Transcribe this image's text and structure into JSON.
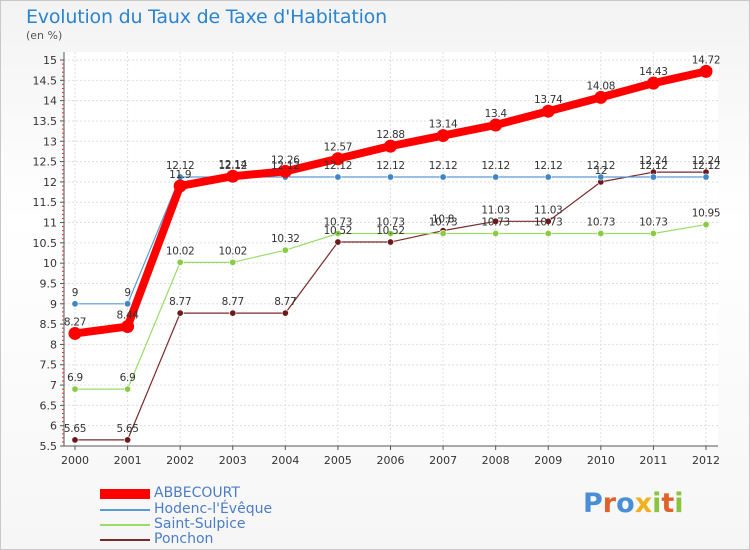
{
  "title": "Evolution du Taux de Taxe d'Habitation",
  "unit_label": "(en %)",
  "brand": "Proxiti",
  "brand_colors": [
    "#4a8fd6",
    "#e0622b",
    "#4a8fd6",
    "#f0b020",
    "#8ac43e",
    "#e0622b",
    "#8ac43e"
  ],
  "chart_data": {
    "type": "line",
    "title": "Evolution du Taux de Taxe d'Habitation",
    "ylabel": "(en %)",
    "xlabel": "",
    "x": [
      "2000",
      "2001",
      "2002",
      "2003",
      "2004",
      "2005",
      "2006",
      "2007",
      "2008",
      "2009",
      "2010",
      "2011",
      "2012"
    ],
    "ylim": [
      5.5,
      15
    ],
    "yticks": [
      "5.5",
      "6",
      "6.5",
      "7",
      "7.5",
      "8",
      "8.5",
      "9",
      "9.5",
      "10",
      "10.5",
      "11",
      "11.5",
      "12",
      "12.5",
      "13",
      "13.5",
      "14",
      "14.5",
      "15"
    ],
    "grid": true,
    "legend_position": "bottom-left",
    "series": [
      {
        "name": "ABBECOURT",
        "color": "#ff0000",
        "values": [
          8.27,
          8.44,
          11.9,
          12.14,
          12.26,
          12.57,
          12.88,
          13.14,
          13.4,
          13.74,
          14.08,
          14.43,
          14.72
        ],
        "labels": [
          "8.27",
          "8.44",
          "11.9",
          "12.14",
          "12.26",
          "12.57",
          "12.88",
          "13.14",
          "13.4",
          "13.74",
          "14.08",
          "14.43",
          "14.72"
        ]
      },
      {
        "name": "Hodenc-l'Évêque",
        "color": "#5b9bd5",
        "values": [
          9,
          9,
          12.12,
          12.12,
          12.12,
          12.12,
          12.12,
          12.12,
          12.12,
          12.12,
          12.12,
          12.12,
          12.12
        ],
        "labels": [
          "9",
          "9",
          "12.12",
          "12.12",
          "12.12",
          "12.12",
          "12.12",
          "12.12",
          "12.12",
          "12.12",
          "12.12",
          "12.12",
          "12.12"
        ]
      },
      {
        "name": "Saint-Sulpice",
        "color": "#99dd66",
        "values": [
          6.9,
          6.9,
          10.02,
          10.02,
          10.32,
          10.73,
          10.73,
          10.73,
          10.73,
          10.73,
          10.73,
          10.73,
          10.95
        ],
        "labels": [
          "6.9",
          "6.9",
          "10.02",
          "10.02",
          "10.32",
          "10.73",
          "10.73",
          "10.73",
          "10.73",
          "10.73",
          "10.73",
          "10.73",
          "10.95"
        ]
      },
      {
        "name": "Ponchon",
        "color": "#7a2a2a",
        "values": [
          5.65,
          5.65,
          8.77,
          8.77,
          8.77,
          10.52,
          10.52,
          10.8,
          11.03,
          11.03,
          12,
          12.24,
          12.24
        ],
        "labels": [
          "5.65",
          "5.65",
          "8.77",
          "8.77",
          "8.77",
          "10.52",
          "10.52",
          "10.8",
          "11.03",
          "11.03",
          "12",
          "12.24",
          "12.24"
        ]
      }
    ]
  }
}
